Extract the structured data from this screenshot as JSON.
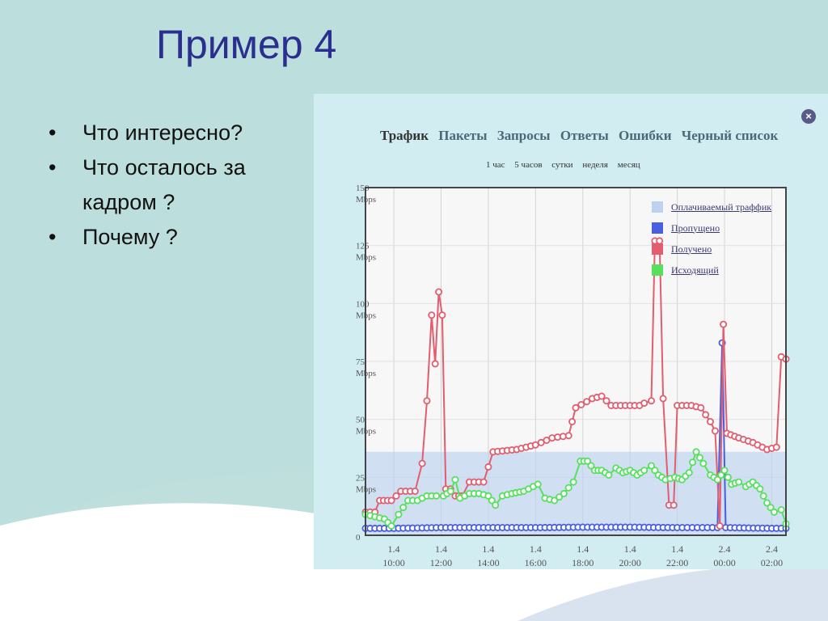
{
  "slide": {
    "title": "Пример 4",
    "bullets": [
      "Что интересно?",
      "Что осталось за кадром ?",
      "Почему ?"
    ]
  },
  "screenshot": {
    "close_icon": "close-icon",
    "tabs": [
      {
        "label": "Трафик",
        "active": true
      },
      {
        "label": "Пакеты",
        "active": false
      },
      {
        "label": "Запросы",
        "active": false
      },
      {
        "label": "Ответы",
        "active": false
      },
      {
        "label": "Ошибки",
        "active": false
      },
      {
        "label": "Черный список",
        "active": false
      }
    ],
    "periods": [
      "1 час",
      "5 часов",
      "сутки",
      "неделя",
      "месяц"
    ]
  },
  "colors": {
    "title": "#2a2f8f",
    "received": "#e25d6e",
    "outgoing": "#56e05e",
    "dropped": "#4a5fe0",
    "billed": "#bcd2ee"
  },
  "chart_data": {
    "type": "line",
    "ylim": [
      0,
      150
    ],
    "y_ticks": [
      {
        "value": 0,
        "label": "0",
        "unit": ""
      },
      {
        "value": 25,
        "label": "25",
        "unit": "Mbps"
      },
      {
        "value": 50,
        "label": "50",
        "unit": "Mbps"
      },
      {
        "value": 75,
        "label": "75",
        "unit": "Mbps"
      },
      {
        "value": 100,
        "label": "100",
        "unit": "Mbps"
      },
      {
        "value": 125,
        "label": "125",
        "unit": "Mbps"
      },
      {
        "value": 150,
        "label": "150",
        "unit": "Mbps"
      }
    ],
    "x_range": [
      8.8,
      26.6
    ],
    "x_ticks": [
      {
        "value": 10,
        "date": "1.4",
        "time": "10:00"
      },
      {
        "value": 12,
        "date": "1.4",
        "time": "12:00"
      },
      {
        "value": 14,
        "date": "1.4",
        "time": "14:00"
      },
      {
        "value": 16,
        "date": "1.4",
        "time": "16:00"
      },
      {
        "value": 18,
        "date": "1.4",
        "time": "18:00"
      },
      {
        "value": 20,
        "date": "1.4",
        "time": "20:00"
      },
      {
        "value": 22,
        "date": "1.4",
        "time": "22:00"
      },
      {
        "value": 24,
        "date": "2.4",
        "time": "00:00"
      },
      {
        "value": 26,
        "date": "2.4",
        "time": "02:00"
      }
    ],
    "billed_level": 36,
    "legend_placement": "top-right",
    "series": [
      {
        "name": "Оплачиваемый траффик",
        "key": "billed",
        "kind": "band",
        "values": []
      },
      {
        "name": "Пропущено",
        "key": "dropped",
        "kind": "line",
        "points": [
          [
            8.8,
            3
          ],
          [
            10,
            3
          ],
          [
            12,
            3.3
          ],
          [
            14,
            3.3
          ],
          [
            16,
            3.3
          ],
          [
            18,
            3.5
          ],
          [
            20,
            3.5
          ],
          [
            22,
            3.3
          ],
          [
            23.7,
            3.3
          ],
          [
            23.9,
            83
          ],
          [
            24.05,
            3.3
          ],
          [
            26,
            3
          ],
          [
            26.6,
            3
          ]
        ]
      },
      {
        "name": "Получено",
        "key": "received",
        "kind": "line",
        "points": [
          [
            8.8,
            10
          ],
          [
            9.2,
            10
          ],
          [
            9.4,
            15
          ],
          [
            9.9,
            15
          ],
          [
            10.3,
            19
          ],
          [
            10.9,
            19
          ],
          [
            11.2,
            31
          ],
          [
            11.4,
            58
          ],
          [
            11.6,
            95
          ],
          [
            11.75,
            74
          ],
          [
            11.9,
            105
          ],
          [
            12.05,
            95
          ],
          [
            12.2,
            20
          ],
          [
            12.4,
            20
          ],
          [
            12.6,
            17
          ],
          [
            12.9,
            17
          ],
          [
            13.2,
            23
          ],
          [
            13.8,
            23
          ],
          [
            14.2,
            36
          ],
          [
            15.2,
            37
          ],
          [
            16,
            39
          ],
          [
            16.7,
            42
          ],
          [
            17.4,
            43
          ],
          [
            17.7,
            55
          ],
          [
            18.4,
            59
          ],
          [
            18.8,
            60
          ],
          [
            19.2,
            56
          ],
          [
            19.8,
            56
          ],
          [
            20.4,
            56
          ],
          [
            20.6,
            57
          ],
          [
            20.9,
            58
          ],
          [
            21.05,
            127
          ],
          [
            21.25,
            127
          ],
          [
            21.4,
            59
          ],
          [
            21.65,
            13
          ],
          [
            21.85,
            13
          ],
          [
            22,
            56
          ],
          [
            22.6,
            56
          ],
          [
            23,
            55
          ],
          [
            23.4,
            49
          ],
          [
            23.6,
            45
          ],
          [
            23.8,
            4
          ],
          [
            23.95,
            91
          ],
          [
            24.1,
            44
          ],
          [
            24.6,
            42
          ],
          [
            25.2,
            40
          ],
          [
            25.8,
            37
          ],
          [
            26.2,
            38
          ],
          [
            26.4,
            77
          ],
          [
            26.6,
            76
          ]
        ]
      },
      {
        "name": "Исходящий",
        "key": "outgoing",
        "kind": "line",
        "points": [
          [
            8.8,
            9
          ],
          [
            9.2,
            8
          ],
          [
            9.6,
            7
          ],
          [
            9.9,
            4
          ],
          [
            10.2,
            9
          ],
          [
            10.6,
            15
          ],
          [
            11,
            15
          ],
          [
            11.4,
            17
          ],
          [
            11.8,
            17
          ],
          [
            12.1,
            17
          ],
          [
            12.4,
            19
          ],
          [
            12.6,
            24
          ],
          [
            12.8,
            16
          ],
          [
            13.2,
            18
          ],
          [
            13.6,
            18
          ],
          [
            14,
            17
          ],
          [
            14.3,
            13
          ],
          [
            14.6,
            17
          ],
          [
            15,
            18
          ],
          [
            15.5,
            19
          ],
          [
            16.1,
            22
          ],
          [
            16.4,
            16
          ],
          [
            16.8,
            15
          ],
          [
            17.2,
            18
          ],
          [
            17.6,
            23
          ],
          [
            17.9,
            32
          ],
          [
            18.2,
            32
          ],
          [
            18.5,
            28
          ],
          [
            18.8,
            28
          ],
          [
            19.1,
            26
          ],
          [
            19.4,
            29
          ],
          [
            19.7,
            27
          ],
          [
            20,
            28
          ],
          [
            20.3,
            26
          ],
          [
            20.6,
            28
          ],
          [
            20.9,
            30
          ],
          [
            21.2,
            26
          ],
          [
            21.5,
            24
          ],
          [
            21.9,
            25
          ],
          [
            22.2,
            24
          ],
          [
            22.5,
            27
          ],
          [
            22.8,
            36
          ],
          [
            23.1,
            31
          ],
          [
            23.4,
            26
          ],
          [
            23.7,
            24
          ],
          [
            24,
            28
          ],
          [
            24.3,
            22
          ],
          [
            24.6,
            23
          ],
          [
            24.9,
            21
          ],
          [
            25.2,
            23
          ],
          [
            25.5,
            20
          ],
          [
            25.8,
            14
          ],
          [
            26.1,
            10
          ],
          [
            26.4,
            11
          ],
          [
            26.6,
            5
          ]
        ]
      }
    ]
  }
}
